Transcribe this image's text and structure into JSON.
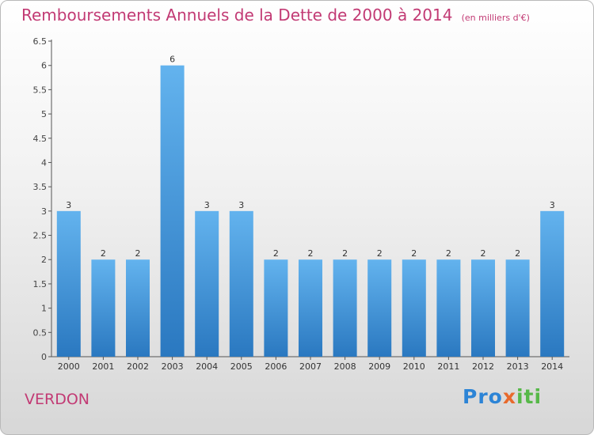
{
  "header": {
    "title": "Remboursements Annuels de la Dette de 2000 à 2014",
    "unit": "(en milliers d'€)"
  },
  "footer": {
    "town": "VERDON",
    "logo": {
      "part1": "Pro",
      "part2": "x",
      "part3": "iti"
    }
  },
  "colors": {
    "bar": "#4a9fe3",
    "title": "#c23a74"
  },
  "chart_data": {
    "type": "bar",
    "title": "Remboursements Annuels de la Dette de 2000 à 2014",
    "subtitle": "(en milliers d'€)",
    "categories": [
      "2000",
      "2001",
      "2002",
      "2003",
      "2004",
      "2005",
      "2006",
      "2007",
      "2008",
      "2009",
      "2010",
      "2011",
      "2012",
      "2013",
      "2014"
    ],
    "values": [
      3,
      2,
      2,
      6,
      3,
      3,
      2,
      2,
      2,
      2,
      2,
      2,
      2,
      2,
      3
    ],
    "ylim": [
      0,
      6.5
    ],
    "yticks": [
      "0",
      "0.5",
      "1",
      "1.5",
      "2",
      "2.5",
      "3",
      "3.5",
      "4",
      "4.5",
      "5",
      "5.5",
      "6",
      "6.5"
    ],
    "grid": false,
    "xlabel": "",
    "ylabel": ""
  }
}
